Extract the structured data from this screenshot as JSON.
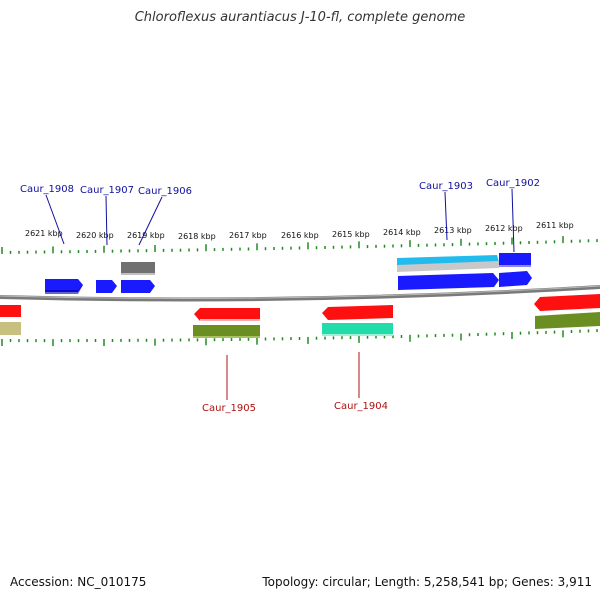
{
  "title": "Chloroflexus aurantiacus J-10-fl, complete genome",
  "footer": {
    "accession": "Accession: NC_010175",
    "topology": "Topology: circular; Length: 5,258,541 bp; Genes: 3,911"
  },
  "colors": {
    "blue": "#1a1aff",
    "blue_dark": "#0000cc",
    "gray": "#707070",
    "cyan": "#22bbee",
    "light_gray": "#c8c8c8",
    "red": "#ff1010",
    "olive": "#6b8e23",
    "teal": "#22ddaa",
    "khaki": "#c8c080",
    "tick_green": "#228b22",
    "axis": "#7a7a7a"
  },
  "scale_labels": [
    "2621 kbp",
    "2620 kbp",
    "2619 kbp",
    "2618 kbp",
    "2617 kbp",
    "2616 kbp",
    "2615 kbp",
    "2614 kbp",
    "2613 kbp",
    "2612 kbp",
    "2611 kbp"
  ],
  "gene_labels_top": [
    "Caur_1908",
    "Caur_1907",
    "Caur_1906",
    "Caur_1903",
    "Caur_1902"
  ],
  "gene_labels_bottom": [
    "Caur_1905",
    "Caur_1904"
  ]
}
